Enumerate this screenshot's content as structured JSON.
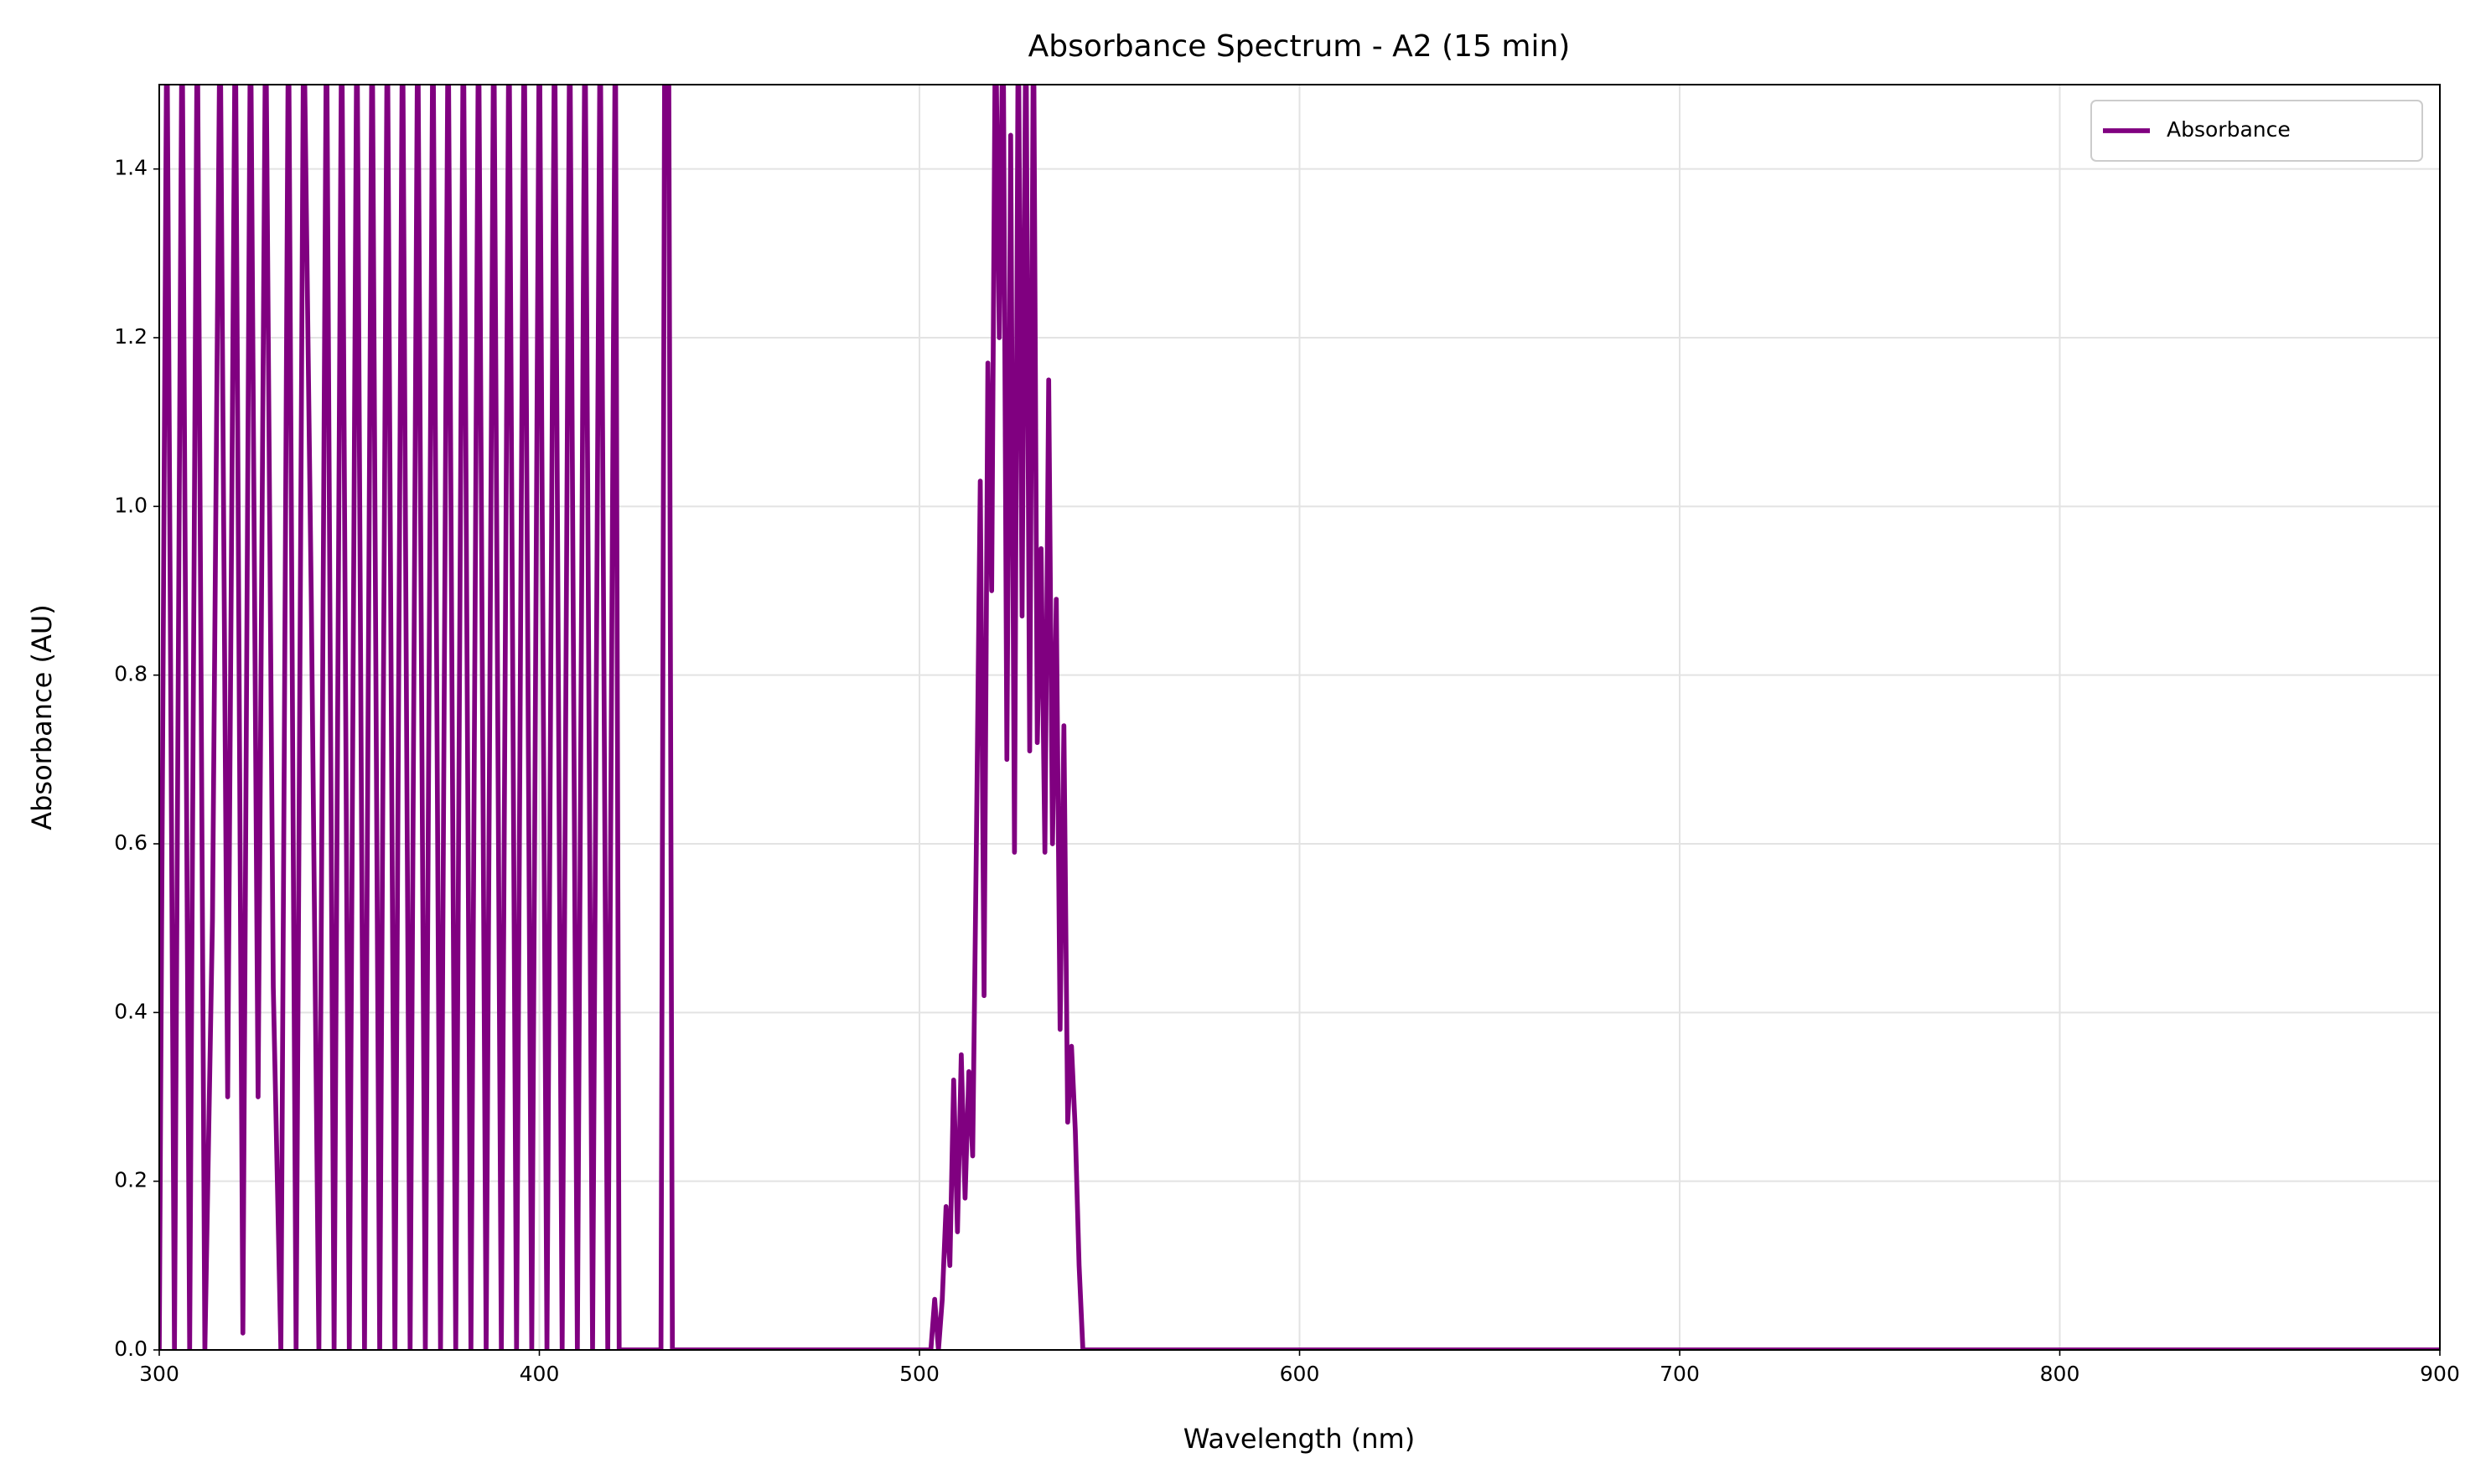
{
  "chart_data": {
    "type": "line",
    "title": "Absorbance Spectrum - A2 (15 min)",
    "x_label": "Wavelength (nm)",
    "y_label": "Absorbance (AU)",
    "x": [
      300,
      302,
      304,
      306,
      308,
      310,
      312,
      314,
      316,
      318,
      320,
      322,
      324,
      326,
      328,
      330,
      332,
      334,
      336,
      338,
      340,
      342,
      344,
      346,
      348,
      350,
      352,
      354,
      356,
      358,
      360,
      362,
      364,
      366,
      368,
      370,
      372,
      374,
      376,
      378,
      380,
      382,
      384,
      386,
      388,
      390,
      392,
      394,
      396,
      398,
      400,
      402,
      404,
      406,
      408,
      410,
      412,
      414,
      416,
      418,
      420,
      421,
      432,
      433,
      434,
      435,
      503,
      504,
      505,
      506,
      507,
      508,
      509,
      510,
      511,
      512,
      513,
      514,
      515,
      516,
      517,
      518,
      519,
      520,
      521,
      522,
      523,
      524,
      525,
      526,
      527,
      528,
      529,
      530,
      531,
      532,
      533,
      534,
      535,
      536,
      537,
      538,
      539,
      540,
      541,
      542,
      543,
      900
    ],
    "series": [
      {
        "name": "Absorbance",
        "color": "#800080",
        "values": [
          0,
          1.6,
          0,
          1.6,
          0,
          1.6,
          0,
          0.51,
          1.6,
          0.3,
          1.6,
          0.02,
          1.6,
          0.3,
          1.6,
          0.43,
          0,
          1.6,
          0,
          1.6,
          0.89,
          0,
          1.6,
          0,
          1.6,
          0,
          1.6,
          0,
          1.6,
          0,
          1.6,
          0,
          1.6,
          0,
          1.6,
          0,
          1.6,
          0,
          1.6,
          0,
          1.6,
          0,
          1.6,
          0,
          1.6,
          0,
          1.6,
          0,
          1.6,
          0,
          1.6,
          0,
          1.6,
          0,
          1.6,
          0,
          1.6,
          0,
          1.6,
          0,
          1.6,
          0,
          0,
          1.6,
          1.6,
          0,
          0,
          0.06,
          0,
          0.06,
          0.17,
          0.1,
          0.32,
          0.14,
          0.35,
          0.18,
          0.33,
          0.23,
          0.61,
          1.03,
          0.42,
          1.17,
          0.9,
          1.6,
          1.2,
          1.6,
          0.7,
          1.44,
          0.59,
          1.6,
          0.87,
          1.6,
          0.71,
          1.6,
          0.72,
          0.95,
          0.59,
          1.15,
          0.6,
          0.89,
          0.38,
          0.74,
          0.27,
          0.36,
          0.26,
          0.1,
          0,
          0
        ]
      }
    ],
    "xlim": [
      300,
      900
    ],
    "xticks": [
      300,
      400,
      500,
      600,
      700,
      800,
      900
    ],
    "ylim": [
      0,
      1.5
    ],
    "yticks": [
      {
        "value": 0,
        "label": "0.0"
      },
      0.2,
      0.4,
      0.6,
      0.8,
      {
        "value": 1,
        "label": "1.0"
      },
      1.2,
      1.4
    ],
    "grid": true,
    "legend": "upper right"
  }
}
